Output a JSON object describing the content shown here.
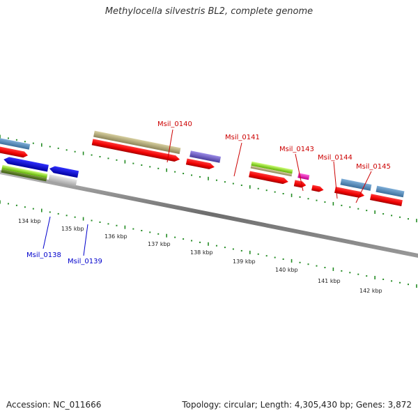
{
  "title": "Methylocella silvestris BL2, complete genome",
  "footer": {
    "accession": "Accession: NC_011666",
    "summary": "Topology: circular; Length: 4,305,430 bp; Genes: 3,872"
  },
  "colors": {
    "forward_label": "#cc0000",
    "reverse_label": "#0000cc",
    "backbone": "#7a7a7a",
    "tick": "#228b22"
  },
  "ticks": [
    "134 kbp",
    "135 kbp",
    "136 kbp",
    "137 kbp",
    "138 kbp",
    "139 kbp",
    "140 kbp",
    "141 kbp",
    "142 kbp"
  ],
  "gene_labels": [
    {
      "text": "Msil_0138",
      "strand": "reverse"
    },
    {
      "text": "Msil_0139",
      "strand": "reverse"
    },
    {
      "text": "Msil_0140",
      "strand": "forward"
    },
    {
      "text": "Msil_0141",
      "strand": "forward"
    },
    {
      "text": "Msil_0143",
      "strand": "forward"
    },
    {
      "text": "Msil_0144",
      "strand": "forward"
    },
    {
      "text": "Msil_0145",
      "strand": "forward"
    }
  ]
}
